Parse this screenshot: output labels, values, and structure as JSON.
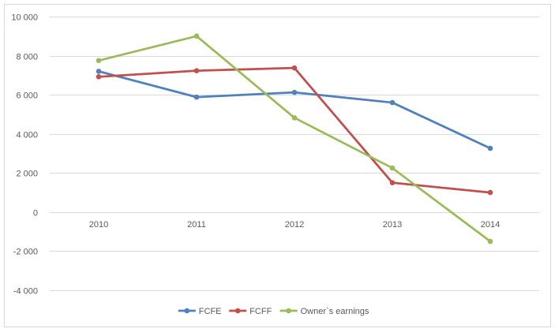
{
  "chart_data": {
    "type": "line",
    "categories": [
      "2010",
      "2011",
      "2012",
      "2013",
      "2014"
    ],
    "series": [
      {
        "name": "FCFE",
        "color": "#4f81bd",
        "values": [
          7200,
          5880,
          6120,
          5600,
          3260
        ]
      },
      {
        "name": "FCFF",
        "color": "#c0504d",
        "values": [
          6920,
          7230,
          7370,
          1500,
          1000
        ]
      },
      {
        "name": "Owner`s earnings",
        "color": "#9bbb59",
        "values": [
          7750,
          9000,
          4820,
          2250,
          -1500
        ]
      }
    ],
    "y_ticks": [
      {
        "value": 10000,
        "label": "10 000"
      },
      {
        "value": 8000,
        "label": "8 000"
      },
      {
        "value": 6000,
        "label": "6 000"
      },
      {
        "value": 4000,
        "label": "4 000"
      },
      {
        "value": 2000,
        "label": "2 000"
      },
      {
        "value": 0,
        "label": "0"
      },
      {
        "value": -2000,
        "label": "-2 000"
      },
      {
        "value": -4000,
        "label": "-4 000"
      }
    ],
    "ylim": [
      -4000,
      10000
    ],
    "grid": true,
    "legend_position": "bottom",
    "title": "",
    "xlabel": "",
    "ylabel": ""
  }
}
